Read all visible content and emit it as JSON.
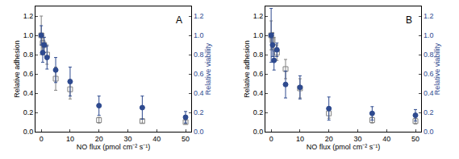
{
  "chart_data": [
    {
      "type": "scatter",
      "annotation": "A",
      "xlabel": "NO flux (pmol cm⁻² s⁻¹)",
      "ylabel": "Relative adhesion",
      "y2label": "Relative viability",
      "xlim": [
        -2,
        52
      ],
      "xticks": [
        0,
        10,
        20,
        30,
        40,
        50
      ],
      "ylim": [
        0,
        1.3
      ],
      "yticks": [
        {
          "value": 0,
          "label": "0.0"
        },
        {
          "value": 0.2,
          "label": "0.2"
        },
        {
          "value": 0.4,
          "label": "0.4"
        },
        {
          "value": 0.6,
          "label": "0.6"
        },
        {
          "value": 0.8,
          "label": "0.8"
        },
        {
          "value": 1,
          "label": "1.0"
        },
        {
          "value": 1.2,
          "label": "1.2"
        }
      ],
      "y2lim": [
        0,
        1.3
      ],
      "y2ticks": [
        {
          "value": 0,
          "label": "0.0"
        },
        {
          "value": 0.2,
          "label": "0.2"
        },
        {
          "value": 0.4,
          "label": "0.4"
        },
        {
          "value": 0.6,
          "label": "0.6"
        },
        {
          "value": 0.8,
          "label": "0.8"
        },
        {
          "value": 1,
          "label": "1.0"
        },
        {
          "value": 1.2,
          "label": "1.2"
        }
      ],
      "x": [
        0,
        0.5,
        1,
        2,
        5,
        10,
        20,
        35,
        50
      ],
      "series": [
        {
          "color": "#808080",
          "marker": "square-open",
          "values": [
            1.0,
            0.92,
            0.9,
            0.8,
            0.55,
            0.44,
            0.12,
            0.11,
            0.1
          ],
          "errors": [
            0.2,
            0.1,
            0.08,
            0.1,
            0.12,
            0.1,
            0.03,
            0.02,
            0.02
          ]
        },
        {
          "color": "#2e4a8f",
          "marker": "circle",
          "axis": "y2",
          "values": [
            1.0,
            0.82,
            0.9,
            0.77,
            0.64,
            0.52,
            0.27,
            0.25,
            0.15
          ],
          "errors": [
            0.1,
            0.1,
            0.08,
            0.12,
            0.13,
            0.15,
            0.1,
            0.12,
            0.06
          ]
        }
      ]
    },
    {
      "type": "scatter",
      "annotation": "B",
      "xlabel": "NO flux (pmol cm⁻² s⁻¹)",
      "ylabel": "Relative adhesion",
      "y2label": "Relative viability",
      "xlim": [
        -2,
        52
      ],
      "xticks": [
        0,
        10,
        20,
        30,
        40,
        50
      ],
      "ylim": [
        0,
        1.3
      ],
      "yticks": [
        {
          "value": 0,
          "label": "0.0"
        },
        {
          "value": 0.2,
          "label": "0.2"
        },
        {
          "value": 0.4,
          "label": "0.4"
        },
        {
          "value": 0.6,
          "label": "0.6"
        },
        {
          "value": 0.8,
          "label": "0.8"
        },
        {
          "value": 1,
          "label": "1.0"
        },
        {
          "value": 1.2,
          "label": "1.2"
        }
      ],
      "y2lim": [
        0,
        1.3
      ],
      "y2ticks": [
        {
          "value": 0,
          "label": "0.0"
        },
        {
          "value": 0.2,
          "label": "0.2"
        },
        {
          "value": 0.4,
          "label": "0.4"
        },
        {
          "value": 0.6,
          "label": "0.6"
        },
        {
          "value": 0.8,
          "label": "0.8"
        },
        {
          "value": 1,
          "label": "1.0"
        },
        {
          "value": 1.2,
          "label": "1.2"
        }
      ],
      "x": [
        0,
        0.5,
        1,
        2,
        5,
        10,
        20,
        35,
        50
      ],
      "series": [
        {
          "color": "#808080",
          "marker": "square-open",
          "values": [
            1.0,
            0.95,
            0.88,
            0.82,
            0.65,
            0.45,
            0.19,
            0.12,
            0.11
          ],
          "errors": [
            0.15,
            0.08,
            0.1,
            0.08,
            0.1,
            0.1,
            0.05,
            0.03,
            0.03
          ]
        },
        {
          "color": "#2e4a8f",
          "marker": "circle",
          "axis": "y2",
          "values": [
            1.0,
            0.9,
            0.74,
            0.85,
            0.49,
            0.46,
            0.24,
            0.19,
            0.17
          ],
          "errors": [
            0.28,
            0.12,
            0.1,
            0.07,
            0.14,
            0.12,
            0.12,
            0.07,
            0.06
          ]
        }
      ]
    }
  ]
}
